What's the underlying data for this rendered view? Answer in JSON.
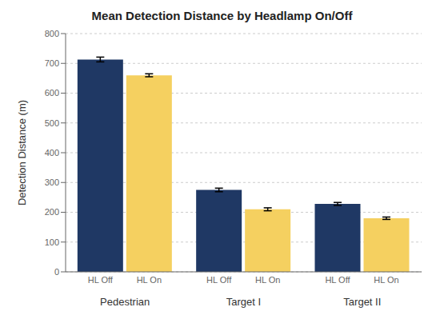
{
  "chart_data": {
    "type": "bar",
    "title": "Mean Detection Distance by Headlamp On/Off",
    "ylabel": "Detection Distance (m)",
    "categories": [
      "Pedestrian",
      "Target I",
      "Target II"
    ],
    "series": [
      {
        "name": "HL Off",
        "color": "#1F3864",
        "values": [
          713,
          275,
          228
        ],
        "errors": [
          8,
          6,
          5
        ]
      },
      {
        "name": "HL On",
        "color": "#F5D060",
        "values": [
          660,
          210,
          180
        ],
        "errors": [
          5,
          5,
          4
        ]
      }
    ],
    "ylim": [
      0,
      800
    ],
    "yticks": [
      0,
      100,
      200,
      300,
      400,
      500,
      600,
      700,
      800
    ],
    "grid": true
  }
}
